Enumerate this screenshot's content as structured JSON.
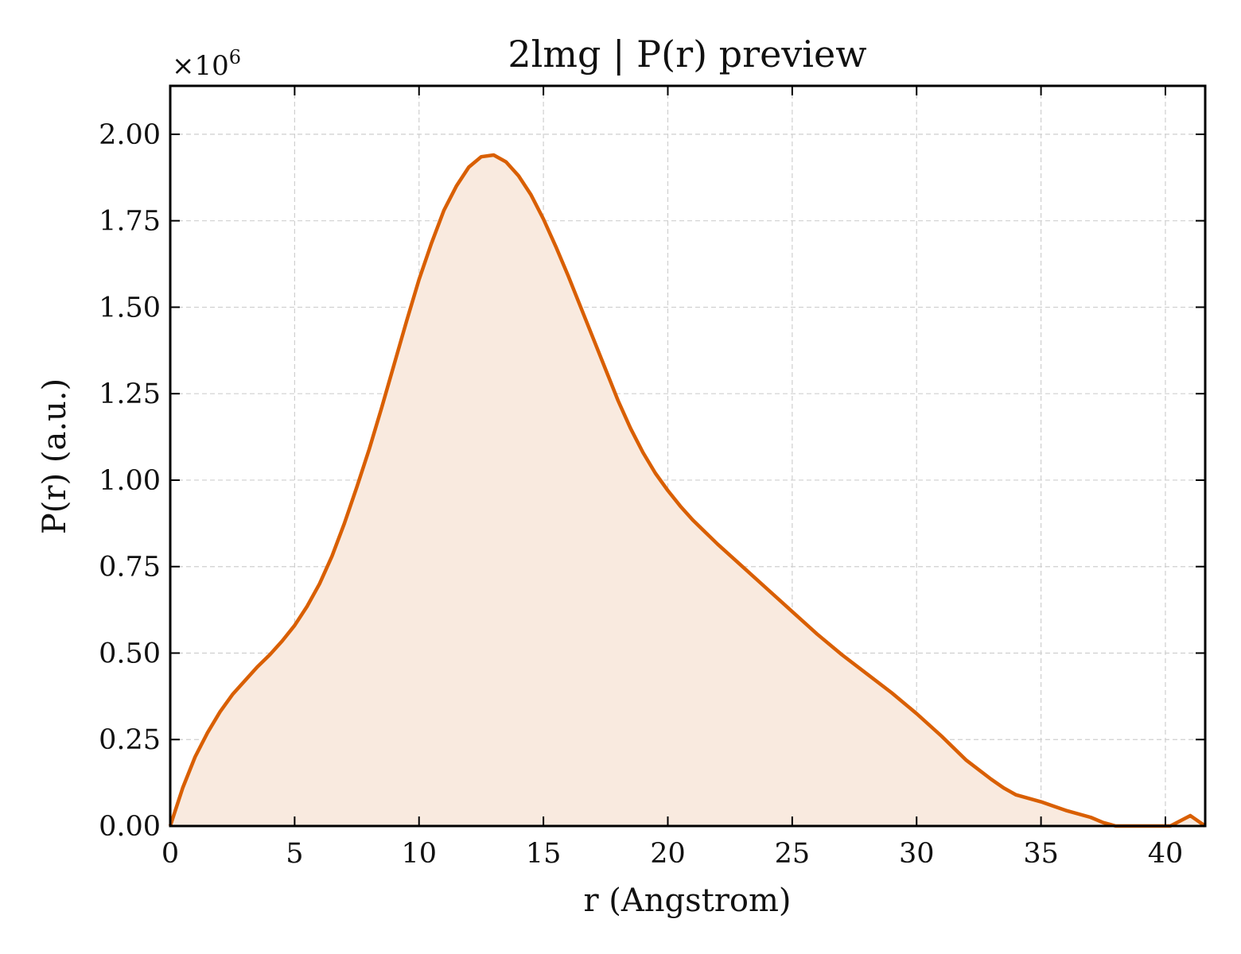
{
  "chart_data": {
    "type": "area",
    "title": "2lmg | P(r) preview",
    "xlabel": "r (Angstrom)",
    "ylabel": "P(r) (a.u.)",
    "y_multiplier": "×10",
    "y_multiplier_exponent": "6",
    "xlim": [
      0,
      41.6
    ],
    "ylim": [
      0,
      2.14
    ],
    "x_ticks": [
      0,
      5,
      10,
      15,
      20,
      25,
      30,
      35,
      40
    ],
    "x_tick_labels": [
      "0",
      "5",
      "10",
      "15",
      "20",
      "25",
      "30",
      "35",
      "40"
    ],
    "y_ticks": [
      0,
      0.25,
      0.5,
      0.75,
      1.0,
      1.25,
      1.5,
      1.75,
      2.0
    ],
    "y_tick_labels": [
      "0.00",
      "0.25",
      "0.50",
      "0.75",
      "1.00",
      "1.25",
      "1.50",
      "1.75",
      "2.00"
    ],
    "grid": true,
    "ticks_direction": "in",
    "line_color": "#d95f02",
    "fill_color": "#f9eadf",
    "series": [
      {
        "x": [
          0,
          0.5,
          1,
          1.5,
          2,
          2.5,
          3,
          3.5,
          4,
          4.5,
          5,
          5.5,
          6,
          6.5,
          7,
          7.5,
          8,
          8.5,
          9,
          9.5,
          10,
          10.5,
          11,
          11.5,
          12,
          12.5,
          13,
          13.5,
          14,
          14.5,
          15,
          15.5,
          16,
          16.5,
          17,
          17.5,
          18,
          18.5,
          19,
          19.5,
          20,
          20.5,
          21,
          21.5,
          22,
          23,
          24,
          25,
          26,
          27,
          28,
          29,
          30,
          31,
          32,
          33,
          33.5,
          34,
          35,
          36,
          37,
          37.5,
          38,
          38.7,
          40.2,
          41,
          41.6
        ],
        "y": [
          0.0,
          0.11,
          0.2,
          0.27,
          0.33,
          0.38,
          0.42,
          0.46,
          0.495,
          0.535,
          0.58,
          0.635,
          0.7,
          0.78,
          0.875,
          0.98,
          1.09,
          1.21,
          1.335,
          1.46,
          1.58,
          1.685,
          1.78,
          1.85,
          1.905,
          1.935,
          1.94,
          1.92,
          1.88,
          1.825,
          1.755,
          1.675,
          1.59,
          1.5,
          1.41,
          1.32,
          1.23,
          1.15,
          1.08,
          1.02,
          0.97,
          0.925,
          0.885,
          0.85,
          0.815,
          0.75,
          0.685,
          0.62,
          0.555,
          0.495,
          0.44,
          0.385,
          0.325,
          0.26,
          0.19,
          0.135,
          0.11,
          0.09,
          0.07,
          0.045,
          0.025,
          0.01,
          0.0,
          0.0,
          0.0,
          0.03,
          0.0
        ]
      }
    ]
  }
}
